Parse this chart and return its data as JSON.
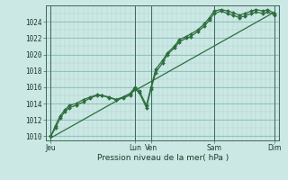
{
  "title": "Pression niveau de la mer( hPa )",
  "bg_color": "#cce8e4",
  "grid_color_major": "#88bfb8",
  "grid_color_minor": "#aad4ce",
  "line_color": "#2d6e3e",
  "ylim": [
    1009.5,
    1026.0
  ],
  "yticks": [
    1010,
    1012,
    1014,
    1016,
    1018,
    1020,
    1022,
    1024
  ],
  "xlim": [
    0,
    100
  ],
  "xtick_positions": [
    2,
    38,
    45,
    72,
    98
  ],
  "xtick_labels": [
    "Jeu",
    "Lun",
    "Ven",
    "Sam",
    "Dim"
  ],
  "vline_positions": [
    2,
    38,
    45,
    72,
    98
  ],
  "series1_x": [
    2,
    4,
    6,
    8,
    10,
    13,
    16,
    19,
    22,
    24,
    27,
    30,
    33,
    36,
    38,
    40,
    43,
    45,
    47,
    50,
    52,
    55,
    57,
    60,
    62,
    65,
    68,
    70,
    72,
    75,
    78,
    80,
    83,
    85,
    88,
    90,
    93,
    95,
    98
  ],
  "series1_y": [
    1010.0,
    1011.3,
    1012.5,
    1013.2,
    1013.8,
    1014.0,
    1014.5,
    1014.8,
    1015.1,
    1015.0,
    1014.8,
    1014.5,
    1014.8,
    1015.2,
    1016.0,
    1015.5,
    1013.8,
    1016.0,
    1018.2,
    1019.3,
    1020.2,
    1021.0,
    1021.8,
    1022.2,
    1022.5,
    1023.0,
    1023.8,
    1024.5,
    1025.3,
    1025.5,
    1025.3,
    1025.1,
    1024.8,
    1025.0,
    1025.3,
    1025.5,
    1025.3,
    1025.5,
    1025.0
  ],
  "series2_x": [
    2,
    4,
    6,
    8,
    10,
    13,
    16,
    19,
    22,
    24,
    27,
    30,
    33,
    36,
    38,
    40,
    43,
    45,
    47,
    50,
    52,
    55,
    57,
    60,
    62,
    65,
    68,
    70,
    72,
    75,
    78,
    80,
    83,
    85,
    88,
    90,
    93,
    95,
    98
  ],
  "series2_y": [
    1010.0,
    1011.0,
    1012.2,
    1013.0,
    1013.5,
    1013.8,
    1014.2,
    1014.7,
    1015.0,
    1015.0,
    1014.7,
    1014.5,
    1014.7,
    1015.0,
    1015.8,
    1015.3,
    1013.5,
    1015.8,
    1017.8,
    1019.0,
    1020.0,
    1020.8,
    1021.5,
    1022.0,
    1022.2,
    1022.8,
    1023.5,
    1024.2,
    1025.0,
    1025.3,
    1025.0,
    1024.8,
    1024.5,
    1024.7,
    1025.0,
    1025.2,
    1025.0,
    1025.2,
    1024.8
  ],
  "trend_x": [
    2,
    98
  ],
  "trend_y": [
    1009.8,
    1025.2
  ],
  "marker_size": 2.0,
  "linewidth": 0.9,
  "tick_fontsize": 5.5,
  "label_fontsize": 6.5
}
